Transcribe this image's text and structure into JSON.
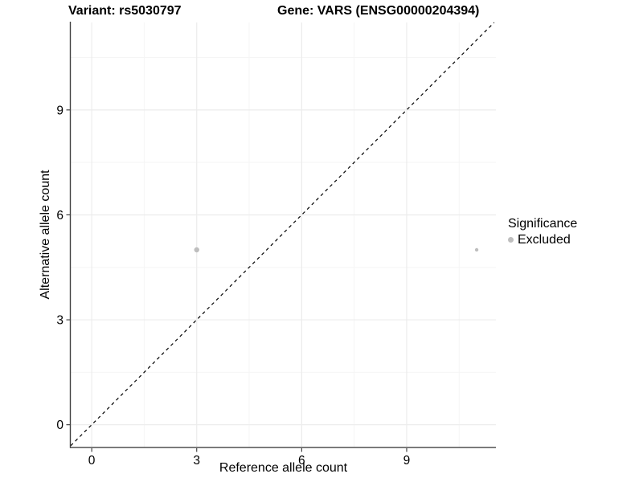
{
  "header": {
    "variant_title": "Variant: rs5030797",
    "gene_title": "Gene: VARS (ENSG00000204394)"
  },
  "chart_data": {
    "type": "scatter",
    "title": "Variant: rs5030797   Gene: VARS (ENSG00000204394)",
    "xlabel": "Reference allele count",
    "ylabel": "Alternative allele count",
    "xlim": [
      -0.6,
      11.55
    ],
    "ylim": [
      -0.65,
      11.5
    ],
    "x_ticks": [
      0,
      3,
      6,
      9
    ],
    "y_ticks": [
      0,
      3,
      6,
      9
    ],
    "grid": true,
    "reference_line": {
      "kind": "identity",
      "style": "dashed",
      "color": "#000000"
    },
    "series": [
      {
        "name": "Excluded",
        "color": "#bebebe",
        "points": [
          {
            "x": 3,
            "y": 5,
            "r": 3.2
          },
          {
            "x": 11,
            "y": 5,
            "r": 2.2
          }
        ]
      }
    ],
    "legend": {
      "title": "Significance",
      "position": "right",
      "entries": [
        {
          "label": "Excluded",
          "color": "#bebebe"
        }
      ]
    }
  },
  "colors": {
    "axis_line": "#404040",
    "tick_mark": "#333333",
    "grid_major": "#ececec",
    "grid_minor": "#f5f5f5",
    "point": "#bebebe",
    "text": "#000000",
    "background": "#ffffff"
  }
}
